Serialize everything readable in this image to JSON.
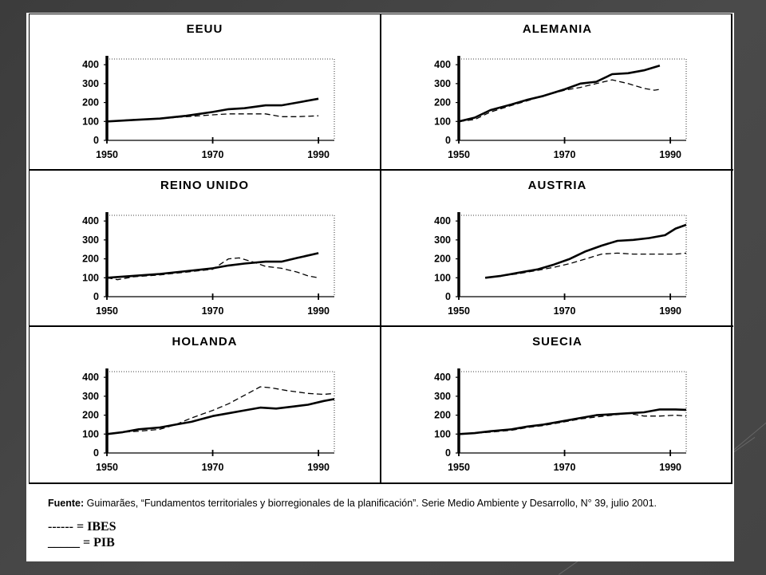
{
  "source": {
    "label": "Fuente:",
    "text": " Guimarães, “Fundamentos territoriales y biorregionales de la planificación”. Serie Medio Ambiente y Desarrollo, N° 39, julio 2001."
  },
  "legend": {
    "dashed": "------ = IBES",
    "solid": "_____ = PIB"
  },
  "chart_data": [
    {
      "type": "line",
      "title": "EEUU",
      "xticks": [
        "1950",
        "1970",
        "1990"
      ],
      "yticks": [
        "0",
        "100",
        "200",
        "300",
        "400"
      ],
      "xlim": [
        1950,
        1993
      ],
      "ylim": [
        0,
        430
      ],
      "series": [
        {
          "style": "solid",
          "x": [
            1950,
            1955,
            1960,
            1965,
            1970,
            1973,
            1976,
            1980,
            1983,
            1986,
            1990
          ],
          "y": [
            100,
            108,
            115,
            130,
            150,
            165,
            170,
            185,
            185,
            200,
            220
          ]
        },
        {
          "style": "dashed",
          "x": [
            1950,
            1955,
            1960,
            1965,
            1970,
            1973,
            1976,
            1980,
            1983,
            1986,
            1990
          ],
          "y": [
            100,
            110,
            115,
            125,
            135,
            140,
            140,
            140,
            125,
            125,
            130
          ]
        }
      ]
    },
    {
      "type": "line",
      "title": "ALEMANIA",
      "xticks": [
        "1950",
        "1970",
        "1990"
      ],
      "yticks": [
        "0",
        "100",
        "200",
        "300",
        "400"
      ],
      "xlim": [
        1950,
        1993
      ],
      "ylim": [
        0,
        430
      ],
      "series": [
        {
          "style": "solid",
          "x": [
            1950,
            1953,
            1956,
            1960,
            1963,
            1966,
            1970,
            1973,
            1976,
            1979,
            1982,
            1985,
            1988
          ],
          "y": [
            100,
            120,
            160,
            190,
            215,
            235,
            270,
            300,
            310,
            350,
            355,
            370,
            395
          ]
        },
        {
          "style": "dashed",
          "x": [
            1950,
            1953,
            1956,
            1960,
            1963,
            1966,
            1970,
            1973,
            1976,
            1979,
            1982,
            1985,
            1987,
            1988
          ],
          "y": [
            100,
            110,
            150,
            185,
            210,
            235,
            265,
            280,
            300,
            320,
            300,
            275,
            265,
            270
          ]
        }
      ]
    },
    {
      "type": "line",
      "title": "REINO UNIDO",
      "xticks": [
        "1950",
        "1970",
        "1990"
      ],
      "yticks": [
        "0",
        "100",
        "200",
        "300",
        "400"
      ],
      "xlim": [
        1950,
        1993
      ],
      "ylim": [
        0,
        430
      ],
      "series": [
        {
          "style": "solid",
          "x": [
            1950,
            1955,
            1960,
            1965,
            1970,
            1973,
            1976,
            1980,
            1983,
            1986,
            1990
          ],
          "y": [
            100,
            110,
            120,
            135,
            150,
            165,
            175,
            185,
            185,
            205,
            230
          ]
        },
        {
          "style": "dashed",
          "x": [
            1950,
            1952,
            1955,
            1960,
            1965,
            1970,
            1973,
            1975,
            1978,
            1980,
            1983,
            1986,
            1988,
            1990
          ],
          "y": [
            100,
            90,
            105,
            115,
            130,
            145,
            200,
            205,
            180,
            160,
            150,
            130,
            110,
            100
          ]
        }
      ]
    },
    {
      "type": "line",
      "title": "AUSTRIA",
      "xticks": [
        "1950",
        "1970",
        "1990"
      ],
      "yticks": [
        "0",
        "100",
        "200",
        "300",
        "400"
      ],
      "xlim": [
        1950,
        1993
      ],
      "ylim": [
        0,
        430
      ],
      "series": [
        {
          "style": "solid",
          "x": [
            1955,
            1958,
            1961,
            1965,
            1968,
            1971,
            1974,
            1977,
            1980,
            1983,
            1986,
            1989,
            1991,
            1993
          ],
          "y": [
            100,
            110,
            125,
            145,
            170,
            200,
            240,
            270,
            295,
            300,
            310,
            325,
            360,
            380
          ]
        },
        {
          "style": "dashed",
          "x": [
            1955,
            1958,
            1961,
            1965,
            1968,
            1971,
            1974,
            1977,
            1980,
            1983,
            1986,
            1989,
            1991,
            1993
          ],
          "y": [
            100,
            110,
            120,
            140,
            155,
            175,
            200,
            225,
            230,
            225,
            225,
            225,
            225,
            230
          ]
        }
      ]
    },
    {
      "type": "line",
      "title": "HOLANDA",
      "xticks": [
        "1950",
        "1970",
        "1990"
      ],
      "yticks": [
        "0",
        "100",
        "200",
        "300",
        "400"
      ],
      "xlim": [
        1950,
        1993
      ],
      "ylim": [
        0,
        430
      ],
      "series": [
        {
          "style": "solid",
          "x": [
            1950,
            1953,
            1956,
            1960,
            1963,
            1966,
            1970,
            1973,
            1976,
            1979,
            1982,
            1985,
            1988,
            1991,
            1993
          ],
          "y": [
            100,
            110,
            125,
            135,
            150,
            165,
            195,
            210,
            225,
            240,
            235,
            245,
            255,
            275,
            285
          ]
        },
        {
          "style": "dashed",
          "x": [
            1950,
            1953,
            1956,
            1960,
            1963,
            1966,
            1970,
            1973,
            1976,
            1979,
            1981,
            1984,
            1988,
            1991,
            1993
          ],
          "y": [
            100,
            110,
            115,
            125,
            150,
            185,
            225,
            260,
            305,
            350,
            345,
            330,
            315,
            310,
            315
          ]
        }
      ]
    },
    {
      "type": "line",
      "title": "SUECIA",
      "xticks": [
        "1950",
        "1970",
        "1990"
      ],
      "yticks": [
        "0",
        "100",
        "200",
        "300",
        "400"
      ],
      "xlim": [
        1950,
        1993
      ],
      "ylim": [
        0,
        430
      ],
      "series": [
        {
          "style": "solid",
          "x": [
            1950,
            1953,
            1956,
            1960,
            1963,
            1966,
            1970,
            1973,
            1976,
            1979,
            1982,
            1985,
            1988,
            1991,
            1993
          ],
          "y": [
            100,
            105,
            115,
            125,
            140,
            150,
            170,
            185,
            200,
            205,
            210,
            215,
            230,
            230,
            228
          ]
        },
        {
          "style": "dashed",
          "x": [
            1950,
            1953,
            1956,
            1960,
            1963,
            1966,
            1970,
            1973,
            1976,
            1979,
            1982,
            1985,
            1988,
            1991,
            1993
          ],
          "y": [
            100,
            105,
            110,
            120,
            135,
            145,
            165,
            180,
            190,
            200,
            210,
            195,
            195,
            200,
            195
          ]
        }
      ]
    }
  ]
}
